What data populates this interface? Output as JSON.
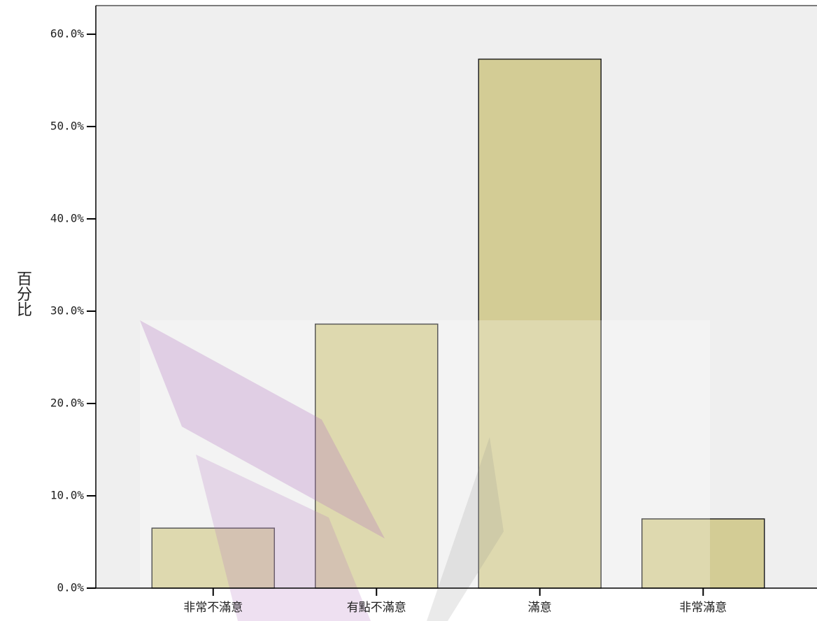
{
  "chart_data": {
    "type": "bar",
    "y_label": "百分比",
    "categories": [
      "非常不滿意",
      "有點不滿意",
      "滿意",
      "非常滿意"
    ],
    "values": [
      6.5,
      28.6,
      57.3,
      7.5
    ],
    "color": "#d3cc95",
    "ylim": [
      0,
      63.1
    ],
    "yticks": [
      {
        "value": 0,
        "label": "0.0%"
      },
      {
        "value": 10,
        "label": "10.0%"
      },
      {
        "value": 20,
        "label": "20.0%"
      },
      {
        "value": 30,
        "label": "30.0%"
      },
      {
        "value": 40,
        "label": "40.0%"
      },
      {
        "value": 50,
        "label": "50.0%"
      },
      {
        "value": 60,
        "label": "60.0%"
      }
    ]
  }
}
